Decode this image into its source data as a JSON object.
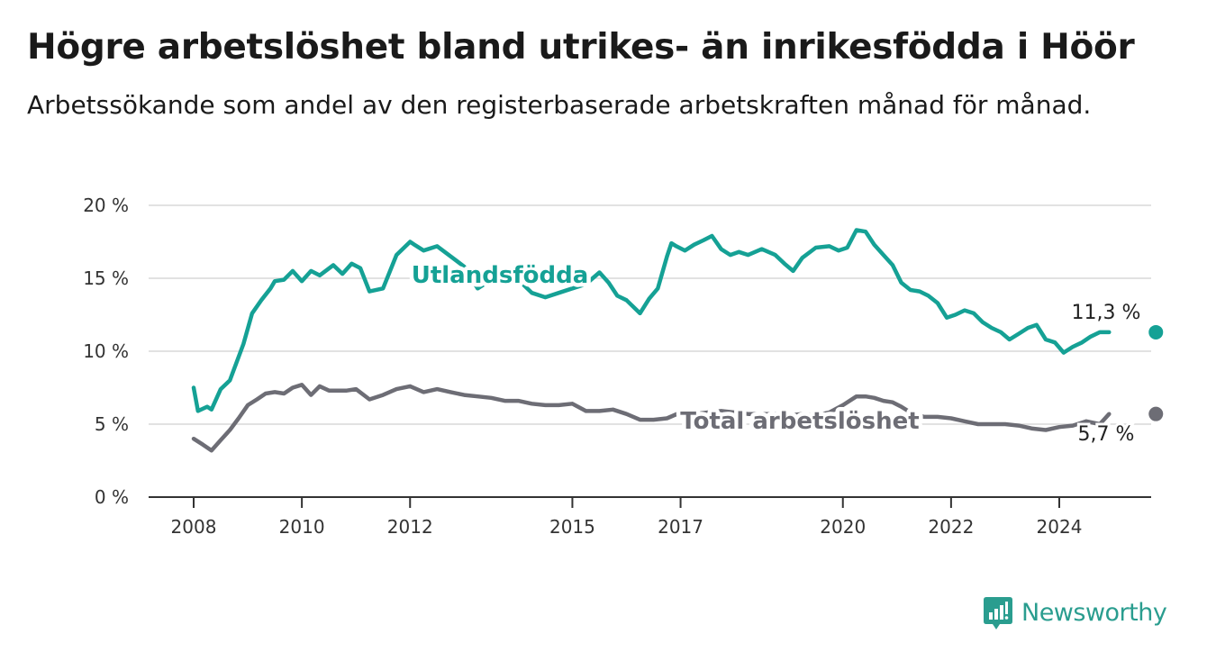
{
  "title": "Högre arbetslöshet bland utrikes- än inrikesfödda i Höör",
  "subtitle": "Arbetssökande som andel av den registerbaserade arbetskraften månad för månad.",
  "brand": {
    "name": "Newsworthy",
    "color": "#2a9d8f",
    "icon": "newsworthy-logo-icon"
  },
  "chart_data": {
    "type": "line",
    "ylim": [
      0,
      20
    ],
    "xlim": [
      2008,
      2025.5
    ],
    "y_ticks": [
      0,
      5,
      10,
      15,
      20
    ],
    "y_tick_labels": [
      "0 %",
      "5 %",
      "10 %",
      "15 %",
      "20 %"
    ],
    "x_ticks": [
      2008,
      2010,
      2012,
      2015,
      2017,
      2020,
      2022,
      2024
    ],
    "x_tick_labels": [
      "2008",
      "2010",
      "2012",
      "2015",
      "2017",
      "2020",
      "2022",
      "2024"
    ],
    "grid": true,
    "legend": "inline labels",
    "series": [
      {
        "name": "Utlandsfödda",
        "color": "#15a195",
        "end_label": "11,3 %",
        "x": [
          2008.0,
          2008.08,
          2008.25,
          2008.33,
          2008.5,
          2008.67,
          2008.92,
          2009.08,
          2009.25,
          2009.42,
          2009.5,
          2009.67,
          2009.83,
          2010.0,
          2010.17,
          2010.33,
          2010.58,
          2010.75,
          2010.92,
          2011.08,
          2011.25,
          2011.5,
          2011.75,
          2012.0,
          2012.08,
          2012.25,
          2012.5,
          2012.75,
          2013.0,
          2013.25,
          2013.5,
          2013.75,
          2014.0,
          2014.25,
          2014.5,
          2014.75,
          2015.0,
          2015.25,
          2015.5,
          2015.67,
          2015.83,
          2016.0,
          2016.25,
          2016.42,
          2016.58,
          2016.75,
          2016.83,
          2016.92,
          2017.08,
          2017.25,
          2017.42,
          2017.58,
          2017.75,
          2017.92,
          2018.08,
          2018.25,
          2018.5,
          2018.75,
          2018.92,
          2019.08,
          2019.25,
          2019.5,
          2019.75,
          2019.92,
          2020.08,
          2020.25,
          2020.42,
          2020.58,
          2020.75,
          2020.92,
          2021.08,
          2021.25,
          2021.42,
          2021.58,
          2021.75,
          2021.92,
          2022.08,
          2022.25,
          2022.42,
          2022.58,
          2022.75,
          2022.92,
          2023.08,
          2023.25,
          2023.42,
          2023.58,
          2023.75,
          2023.92,
          2024.08,
          2024.25,
          2024.42,
          2024.58,
          2024.75,
          2024.92
        ],
        "y": [
          7.5,
          5.9,
          6.2,
          6.0,
          7.4,
          8.0,
          10.5,
          12.6,
          13.5,
          14.3,
          14.8,
          14.9,
          15.5,
          14.8,
          15.5,
          15.2,
          15.9,
          15.3,
          16.0,
          15.7,
          14.1,
          14.3,
          16.6,
          17.5,
          17.3,
          16.9,
          17.2,
          16.5,
          15.8,
          14.3,
          14.9,
          15.0,
          14.9,
          14.0,
          13.7,
          14.0,
          14.3,
          14.6,
          15.4,
          14.7,
          13.8,
          13.5,
          12.6,
          13.6,
          14.3,
          16.5,
          17.4,
          17.2,
          16.9,
          17.3,
          17.6,
          17.9,
          17.0,
          16.6,
          16.8,
          16.6,
          17.0,
          16.6,
          16.0,
          15.5,
          16.4,
          17.1,
          17.2,
          16.9,
          17.1,
          18.3,
          18.2,
          17.3,
          16.6,
          15.9,
          14.7,
          14.2,
          14.1,
          13.8,
          13.3,
          12.3,
          12.5,
          12.8,
          12.6,
          12.0,
          11.6,
          11.3,
          10.8,
          11.2,
          11.6,
          11.8,
          10.8,
          10.6,
          9.9,
          10.3,
          10.6,
          11.0,
          11.3,
          11.3
        ]
      },
      {
        "name": "Total arbetslöshet",
        "color": "#6d6d75",
        "end_label": "5,7 %",
        "x": [
          2008.0,
          2008.17,
          2008.33,
          2008.5,
          2008.67,
          2008.83,
          2009.0,
          2009.17,
          2009.33,
          2009.5,
          2009.67,
          2009.83,
          2010.0,
          2010.17,
          2010.33,
          2010.5,
          2010.67,
          2010.83,
          2011.0,
          2011.25,
          2011.5,
          2011.75,
          2012.0,
          2012.25,
          2012.5,
          2012.75,
          2013.0,
          2013.25,
          2013.5,
          2013.75,
          2014.0,
          2014.25,
          2014.5,
          2014.75,
          2015.0,
          2015.25,
          2015.5,
          2015.75,
          2016.0,
          2016.25,
          2016.5,
          2016.75,
          2017.0,
          2017.25,
          2017.5,
          2017.75,
          2018.0,
          2018.25,
          2018.5,
          2018.75,
          2019.0,
          2019.25,
          2019.5,
          2019.75,
          2020.0,
          2020.25,
          2020.42,
          2020.58,
          2020.75,
          2020.92,
          2021.08,
          2021.25,
          2021.5,
          2021.75,
          2022.0,
          2022.25,
          2022.5,
          2022.75,
          2023.0,
          2023.25,
          2023.5,
          2023.75,
          2024.0,
          2024.25,
          2024.5,
          2024.75,
          2024.92
        ],
        "y": [
          4.0,
          3.6,
          3.2,
          3.9,
          4.6,
          5.4,
          6.3,
          6.7,
          7.1,
          7.2,
          7.1,
          7.5,
          7.7,
          7.0,
          7.6,
          7.3,
          7.3,
          7.3,
          7.4,
          6.7,
          7.0,
          7.4,
          7.6,
          7.2,
          7.4,
          7.2,
          7.0,
          6.9,
          6.8,
          6.6,
          6.6,
          6.4,
          6.3,
          6.3,
          6.4,
          5.9,
          5.9,
          6.0,
          5.7,
          5.3,
          5.3,
          5.4,
          5.8,
          5.7,
          5.8,
          5.9,
          5.8,
          5.7,
          5.7,
          5.7,
          5.6,
          5.7,
          5.6,
          5.8,
          6.3,
          6.9,
          6.9,
          6.8,
          6.6,
          6.5,
          6.2,
          5.8,
          5.5,
          5.5,
          5.4,
          5.2,
          5.0,
          5.0,
          5.0,
          4.9,
          4.7,
          4.6,
          4.8,
          4.9,
          5.2,
          5.0,
          5.7
        ]
      }
    ]
  }
}
